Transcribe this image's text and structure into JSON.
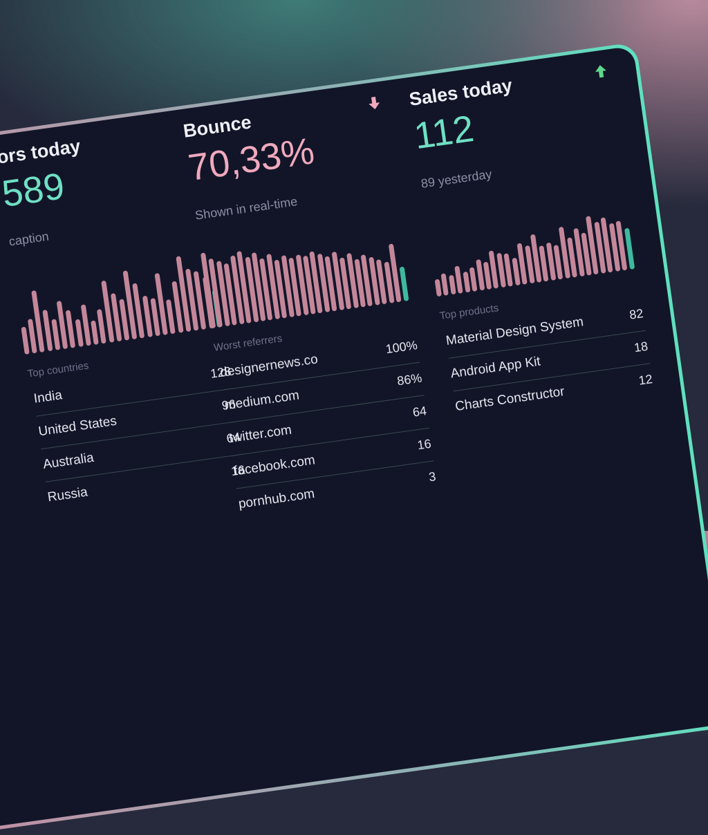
{
  "cards": [
    {
      "title": "ors today",
      "value": 589,
      "value_color": "#6fe0c4",
      "caption": "caption",
      "bars": [
        40,
        50,
        90,
        60,
        45,
        70,
        55,
        40,
        60,
        35,
        50,
        90,
        70,
        60,
        100,
        80,
        60,
        55,
        90,
        50,
        75,
        110,
        90,
        85,
        75,
        55
      ],
      "bar_color": "#c4879a",
      "last_bar_color": "#3fb99e",
      "list_title": "Top countries",
      "rows": [
        {
          "label": "India",
          "value": 128
        },
        {
          "label": "United States",
          "value": 96
        },
        {
          "label": "Australia",
          "value": 64
        },
        {
          "label": "Russia",
          "value": 16
        }
      ]
    },
    {
      "title": "Bounce",
      "value": "70,33%",
      "value_color": "#f0a9bd",
      "caption": "Shown in real-time",
      "bars": [
        110,
        100,
        95,
        90,
        100,
        105,
        95,
        100,
        90,
        95,
        85,
        90,
        85,
        88,
        85,
        90,
        85,
        80,
        85,
        75,
        80,
        70,
        75,
        70,
        65,
        60,
        85,
        50
      ],
      "bar_color": "#c4879a",
      "last_bar_color": "#3fb99e",
      "list_title": "Worst referrers",
      "rows": [
        {
          "label": "designernews.co",
          "value": "100%"
        },
        {
          "label": "medium.com",
          "value": "86%"
        },
        {
          "label": "twitter.com",
          "value": 64
        },
        {
          "label": "facebook.com",
          "value": 16
        },
        {
          "label": "pornhub.com",
          "value": 3
        }
      ]
    },
    {
      "title": "Sales today",
      "value": 112,
      "value_color": "#6fe0c4",
      "caption": "89 yesterday",
      "bars": [
        25,
        32,
        28,
        40,
        30,
        35,
        45,
        40,
        55,
        50,
        48,
        40,
        60,
        55,
        70,
        52,
        55,
        50,
        75,
        58,
        70,
        62,
        85,
        75,
        80,
        70,
        72,
        60
      ],
      "bar_color": "#c4879a",
      "last_bar_color": "#3fb99e",
      "list_title": "Top products",
      "rows": [
        {
          "label": "Material Design System",
          "value": 82
        },
        {
          "label": "Android App Kit",
          "value": 18
        },
        {
          "label": "Charts Constructor",
          "value": 12
        }
      ]
    }
  ]
}
